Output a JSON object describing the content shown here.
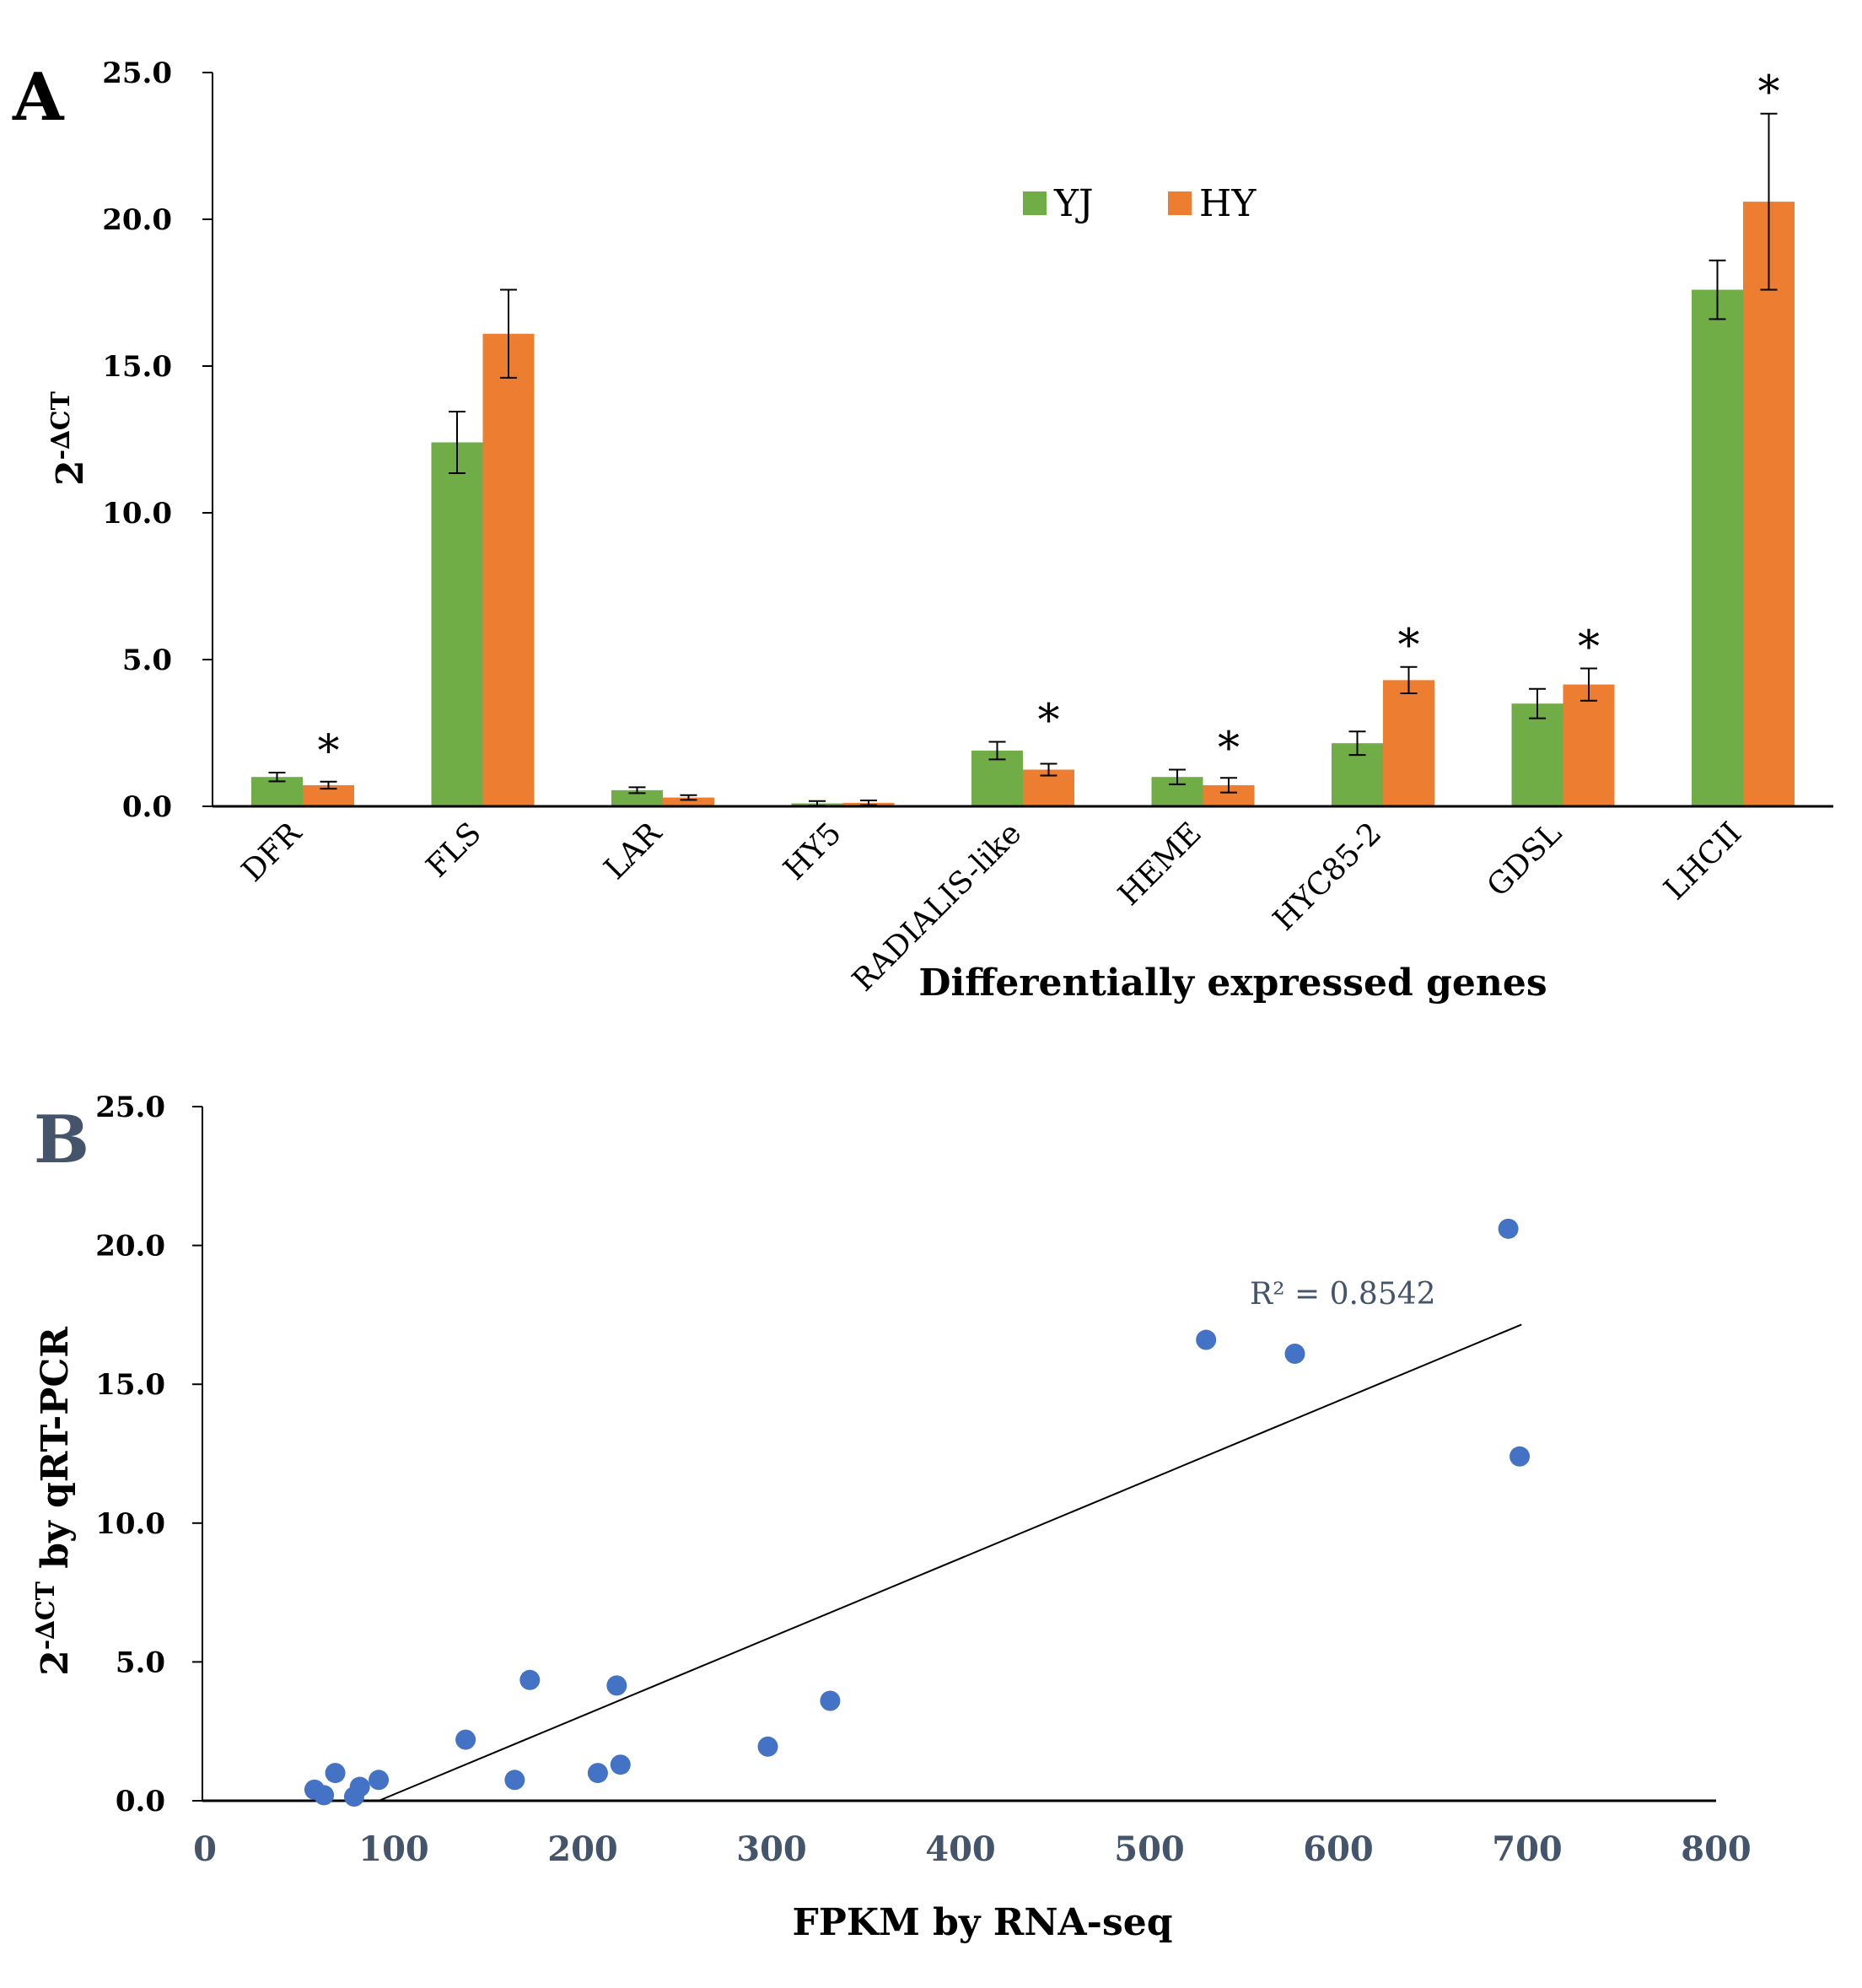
{
  "chart_data": [
    {
      "type": "bar",
      "panel": "A",
      "title": "",
      "xlabel": "Differentially expressed genes",
      "ylabel_base": "2",
      "ylabel_sup": "-∆CT",
      "ylim": [
        0,
        25
      ],
      "yticks": [
        "0.0",
        "5.0",
        "10.0",
        "15.0",
        "20.0",
        "25.0"
      ],
      "categories": [
        "DFR",
        "FLS",
        "LAR",
        "HY5",
        "RADIALIS-like",
        "HEME",
        "HYC85-2",
        "GDSL",
        "LHCII"
      ],
      "series": [
        {
          "name": "YJ",
          "color": "#70ad47",
          "values": [
            1.0,
            12.4,
            0.55,
            0.1,
            1.9,
            1.0,
            2.15,
            3.5,
            17.6
          ],
          "errors": [
            0.15,
            1.05,
            0.1,
            0.08,
            0.3,
            0.25,
            0.4,
            0.5,
            1.0
          ]
        },
        {
          "name": "HY",
          "color": "#ed7d31",
          "values": [
            0.72,
            16.1,
            0.3,
            0.12,
            1.25,
            0.72,
            4.3,
            4.15,
            20.6
          ],
          "errors": [
            0.12,
            1.5,
            0.08,
            0.08,
            0.2,
            0.25,
            0.45,
            0.55,
            3.0
          ]
        }
      ],
      "significance": [
        "*",
        "",
        "",
        "",
        "*",
        "*",
        "*",
        "*",
        "*"
      ],
      "legend_position": "top-center"
    },
    {
      "type": "scatter",
      "panel": "B",
      "xlabel": "FPKM by RNA-seq",
      "ylabel_base": "2",
      "ylabel_sup": "-∆CT",
      "ylabel_rest": "by qRT-PCR",
      "xlim": [
        0,
        800
      ],
      "ylim": [
        0,
        25
      ],
      "xticks": [
        "0",
        "100",
        "200",
        "300",
        "400",
        "500",
        "600",
        "700",
        "800"
      ],
      "yticks": [
        "0.0",
        "5.0",
        "10.0",
        "15.0",
        "20.0",
        "25.0"
      ],
      "color": "#4472c4",
      "points": [
        [
          58,
          0.4
        ],
        [
          63,
          0.2
        ],
        [
          69,
          1.0
        ],
        [
          79,
          0.15
        ],
        [
          82,
          0.5
        ],
        [
          92,
          0.75
        ],
        [
          138,
          2.2
        ],
        [
          164,
          0.75
        ],
        [
          172,
          4.35
        ],
        [
          208,
          1.0
        ],
        [
          218,
          4.15
        ],
        [
          220,
          1.3
        ],
        [
          298,
          1.95
        ],
        [
          331,
          3.6
        ],
        [
          530,
          16.6
        ],
        [
          577,
          16.1
        ],
        [
          690,
          20.6
        ],
        [
          696,
          12.4
        ]
      ],
      "trendline": {
        "x": [
          92,
          697
        ],
        "y": [
          0.0,
          17.15
        ]
      },
      "r2_label": "R² = 0.8542"
    }
  ]
}
